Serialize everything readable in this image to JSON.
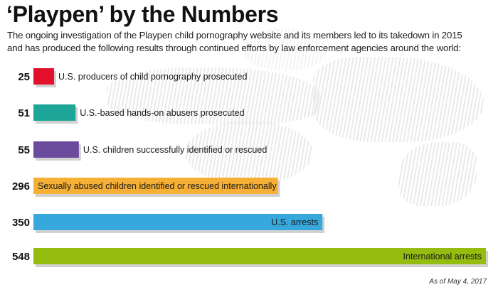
{
  "title": "‘Playpen’ by the Numbers",
  "subtitle_lines": [
    "The ongoing investigation of the Playpen child pornography website and its members led to its takedown in 2015",
    "and has produced the following results through continued efforts by law enforcement agencies around the world:"
  ],
  "footnote": "As of May 4, 2017",
  "chart_data": {
    "type": "bar",
    "orientation": "horizontal",
    "categories": [
      "U.S. producers of child pornography prosecuted",
      "U.S.-based hands-on abusers prosecuted",
      "U.S. children successfully identified or rescued",
      "Sexually abused children identified or rescued internationally",
      "U.S. arrests",
      "International arrests"
    ],
    "values": [
      25,
      51,
      55,
      296,
      350,
      548
    ],
    "colors": [
      "#e3102d",
      "#1da597",
      "#6b4b9c",
      "#f6b035",
      "#37a8dc",
      "#95bd10"
    ],
    "label_position": [
      "outside",
      "outside",
      "outside",
      "inside-left",
      "inside-right",
      "inside-right"
    ],
    "data_labels": [
      "25",
      "51",
      "55",
      "296",
      "350",
      "548"
    ],
    "grid": false,
    "xlim": [
      0,
      548
    ]
  }
}
